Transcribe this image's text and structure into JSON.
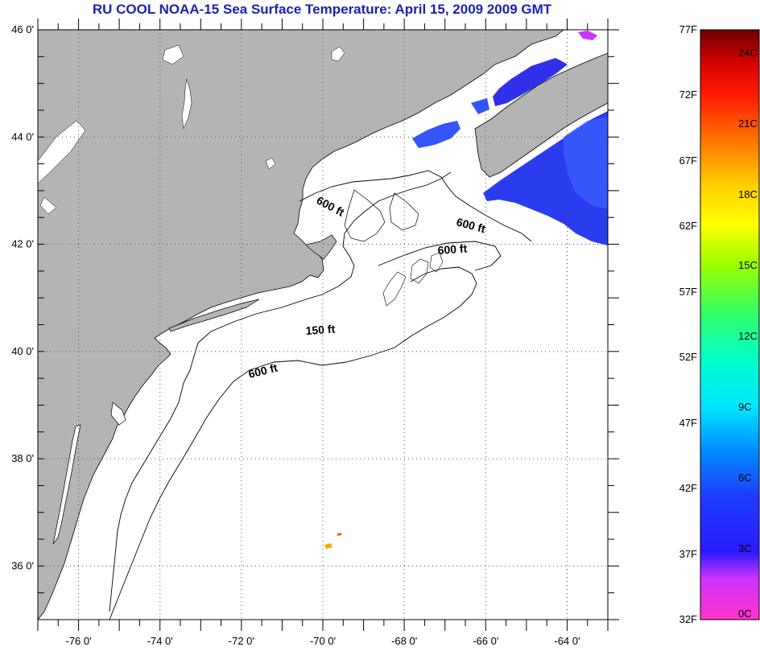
{
  "title": "RU COOL  NOAA-15  Sea Surface Temperature:  April 15, 2009 2009 GMT",
  "map": {
    "lon_range": [
      -77,
      -63
    ],
    "lat_range": [
      35,
      46
    ],
    "lat_ticks": [
      "46 0'",
      "44 0'",
      "42 0'",
      "40 0'",
      "38 0'",
      "36 0'"
    ],
    "lat_values": [
      46,
      44,
      42,
      40,
      38,
      36
    ],
    "lon_ticks": [
      "-76 0'",
      "-74 0'",
      "-72 0'",
      "-70 0'",
      "-68 0'",
      "-66 0'",
      "-64 0'"
    ],
    "lon_values": [
      -76,
      -74,
      -72,
      -70,
      -68,
      -66,
      -64
    ],
    "land_color": "#b4b4b4",
    "contour_labels": [
      "600 ft",
      "600 ft",
      "600 ft",
      "150 ft",
      "600 ft"
    ]
  },
  "colorbar": {
    "f_labels": [
      "77F",
      "72F",
      "67F",
      "62F",
      "57F",
      "52F",
      "47F",
      "42F",
      "37F",
      "32F"
    ],
    "f_values": [
      77,
      72,
      67,
      62,
      57,
      52,
      47,
      42,
      37,
      32
    ],
    "c_labels": [
      "24C",
      "21C",
      "18C",
      "15C",
      "12C",
      "9C",
      "6C",
      "3C",
      "0C"
    ],
    "c_values": [
      24,
      21,
      18,
      15,
      12,
      9,
      6,
      3,
      0
    ],
    "range_f": [
      32,
      77
    ]
  }
}
